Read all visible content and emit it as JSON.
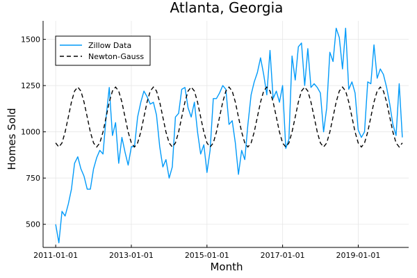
{
  "chart_data": {
    "type": "line",
    "title": "Atlanta, Georgia",
    "xlabel": "Month",
    "ylabel": "Homes Sold",
    "x_ticks": [
      "2011-01-01",
      "2013-01-01",
      "2015-01-01",
      "2017-01-01",
      "2019-01-01"
    ],
    "y_ticks": [
      500,
      750,
      1000,
      1250,
      1500
    ],
    "xlim": [
      "2010-09-01",
      "2020-05-01"
    ],
    "ylim": [
      375,
      1600
    ],
    "grid": true,
    "legend_position": "top-left",
    "series": [
      {
        "name": "Zillow Data",
        "color": "#009af9",
        "style": "solid",
        "start": "2011-01",
        "values": [
          500,
          400,
          570,
          545,
          610,
          690,
          830,
          865,
          800,
          760,
          690,
          690,
          800,
          860,
          900,
          880,
          1080,
          1240,
          980,
          1050,
          830,
          970,
          890,
          820,
          920,
          920,
          1080,
          1160,
          1220,
          1190,
          1150,
          1160,
          1090,
          920,
          810,
          850,
          750,
          810,
          1080,
          1100,
          1230,
          1240,
          1130,
          1080,
          1160,
          1000,
          880,
          930,
          780,
          900,
          1180,
          1180,
          1210,
          1250,
          1230,
          1040,
          1060,
          940,
          770,
          900,
          850,
          1040,
          1200,
          1270,
          1320,
          1400,
          1310,
          1200,
          1440,
          1180,
          1220,
          1160,
          1250,
          910,
          960,
          1410,
          1280,
          1460,
          1480,
          1250,
          1450,
          1240,
          1260,
          1240,
          1210,
          1000,
          1130,
          1430,
          1380,
          1560,
          1510,
          1340,
          1560,
          1230,
          1270,
          1210,
          1010,
          970,
          1000,
          1270,
          1260,
          1470,
          1290,
          1340,
          1310,
          1240,
          1150,
          1040,
          980,
          1260,
          970
        ]
      },
      {
        "name": "Newton-Gauss",
        "color": "#000000",
        "style": "dashed",
        "start": "2011-01",
        "period": 12,
        "mean": 1080,
        "amplitude": 162,
        "peak_month_offset": 7
      }
    ]
  }
}
